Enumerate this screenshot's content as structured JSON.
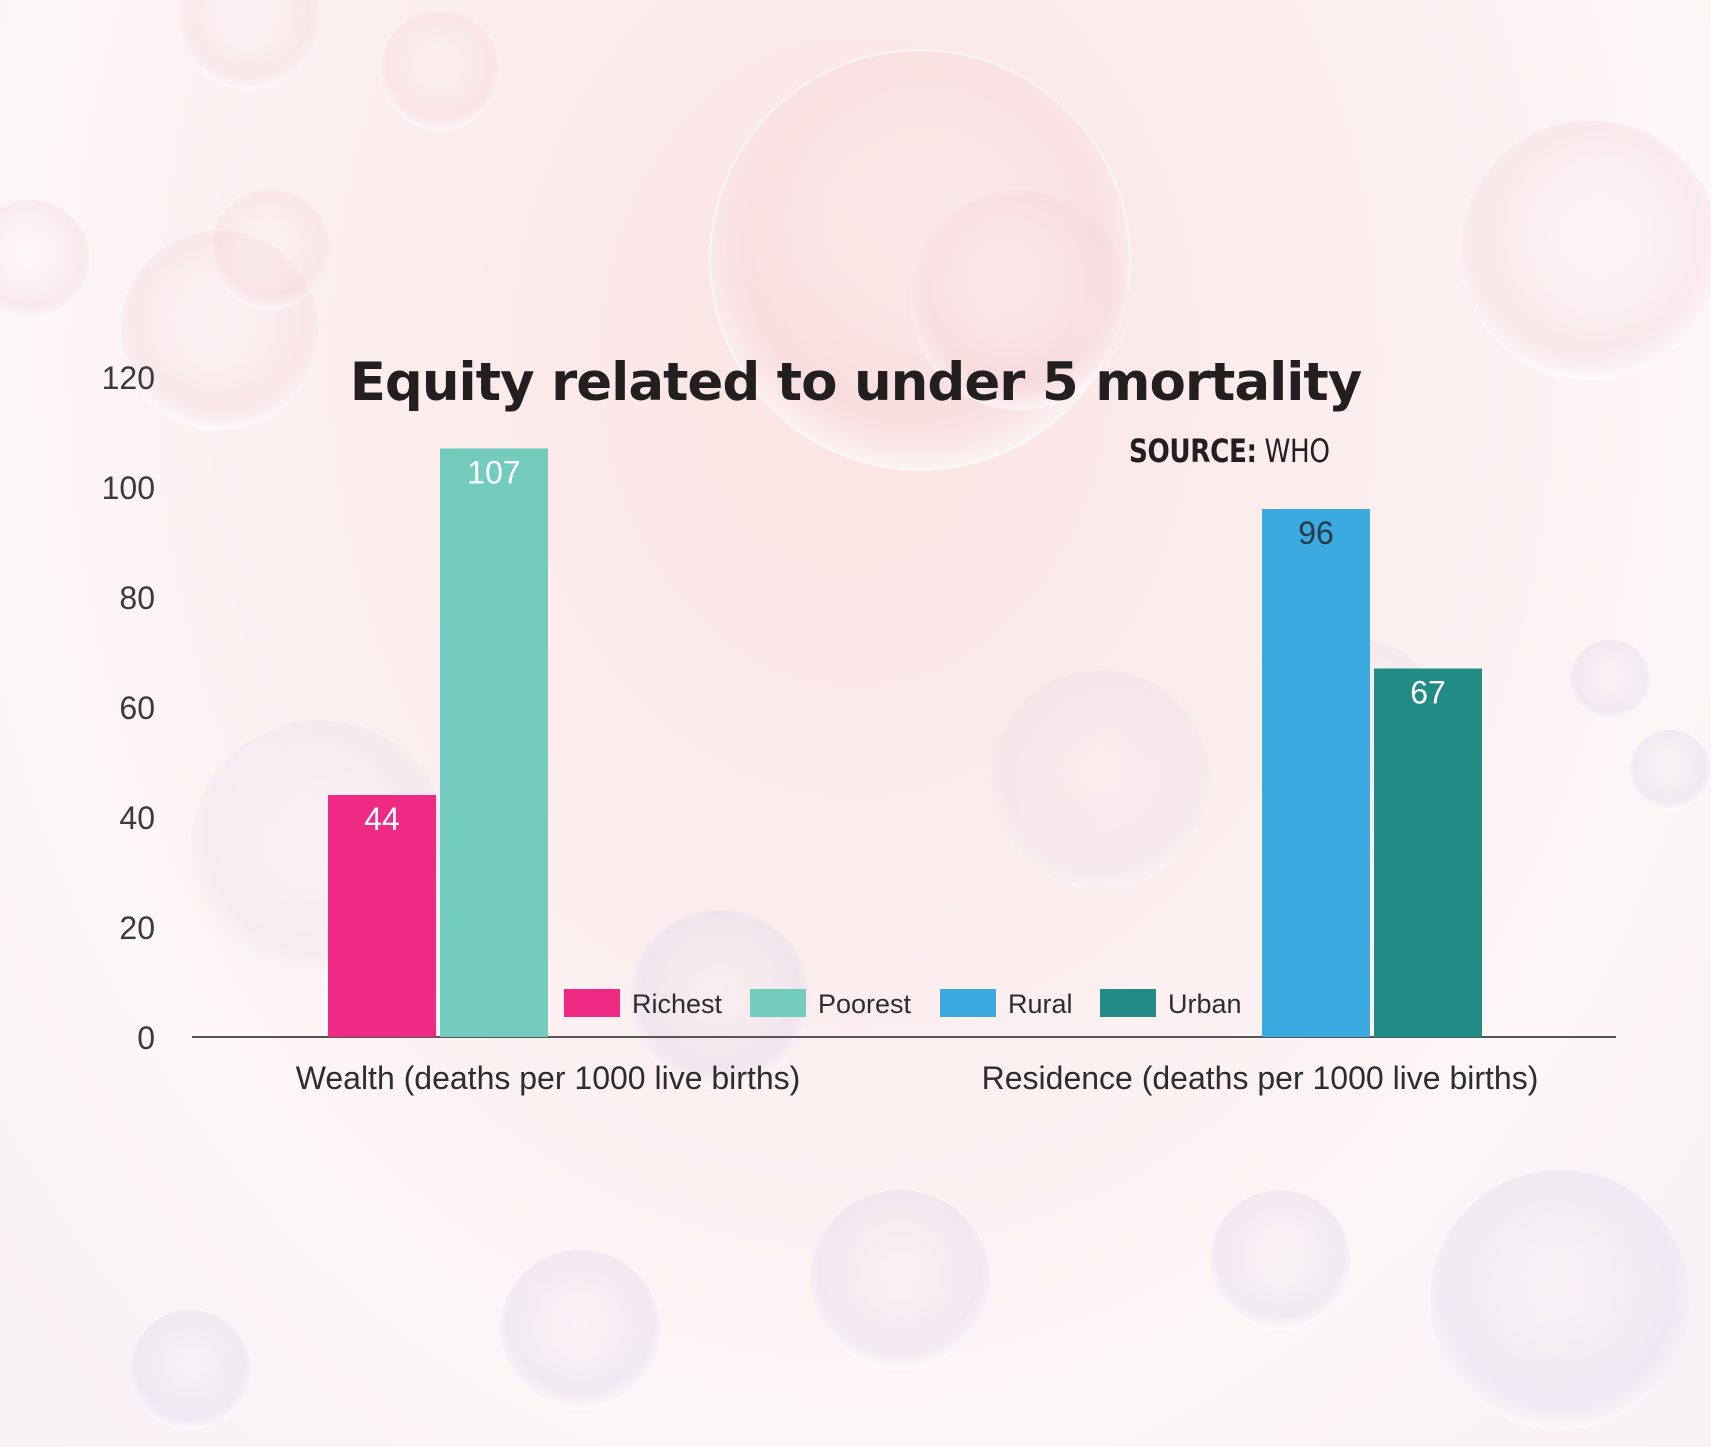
{
  "chart_data": {
    "type": "bar",
    "title": "Equity related to under 5 mortality",
    "source_label": "SOURCE:",
    "source_value": "WHO",
    "ylim": [
      0,
      120
    ],
    "yticks": [
      "0",
      "20",
      "40",
      "60",
      "80",
      "100",
      "120"
    ],
    "grid": false,
    "legend_position": "bottom-center",
    "groups": [
      {
        "category": "Wealth (deaths per 1000 live births)",
        "bars": [
          {
            "name": "Richest",
            "value": 44,
            "label": "44",
            "color": "#ee2a84"
          },
          {
            "name": "Poorest",
            "value": 107,
            "label": "107",
            "color": "#73cbbd"
          }
        ]
      },
      {
        "category": "Residence (deaths per 1000 live births)",
        "bars": [
          {
            "name": "Rural",
            "value": 96,
            "label": "96",
            "color": "#3aaae0"
          },
          {
            "name": "Urban",
            "value": 67,
            "label": "67",
            "color": "#218b86"
          }
        ]
      }
    ],
    "legend": [
      {
        "name": "Richest",
        "color": "#ee2a84"
      },
      {
        "name": "Poorest",
        "color": "#73cbbd"
      },
      {
        "name": "Rural",
        "color": "#3aaae0"
      },
      {
        "name": "Urban",
        "color": "#218b86"
      }
    ]
  }
}
